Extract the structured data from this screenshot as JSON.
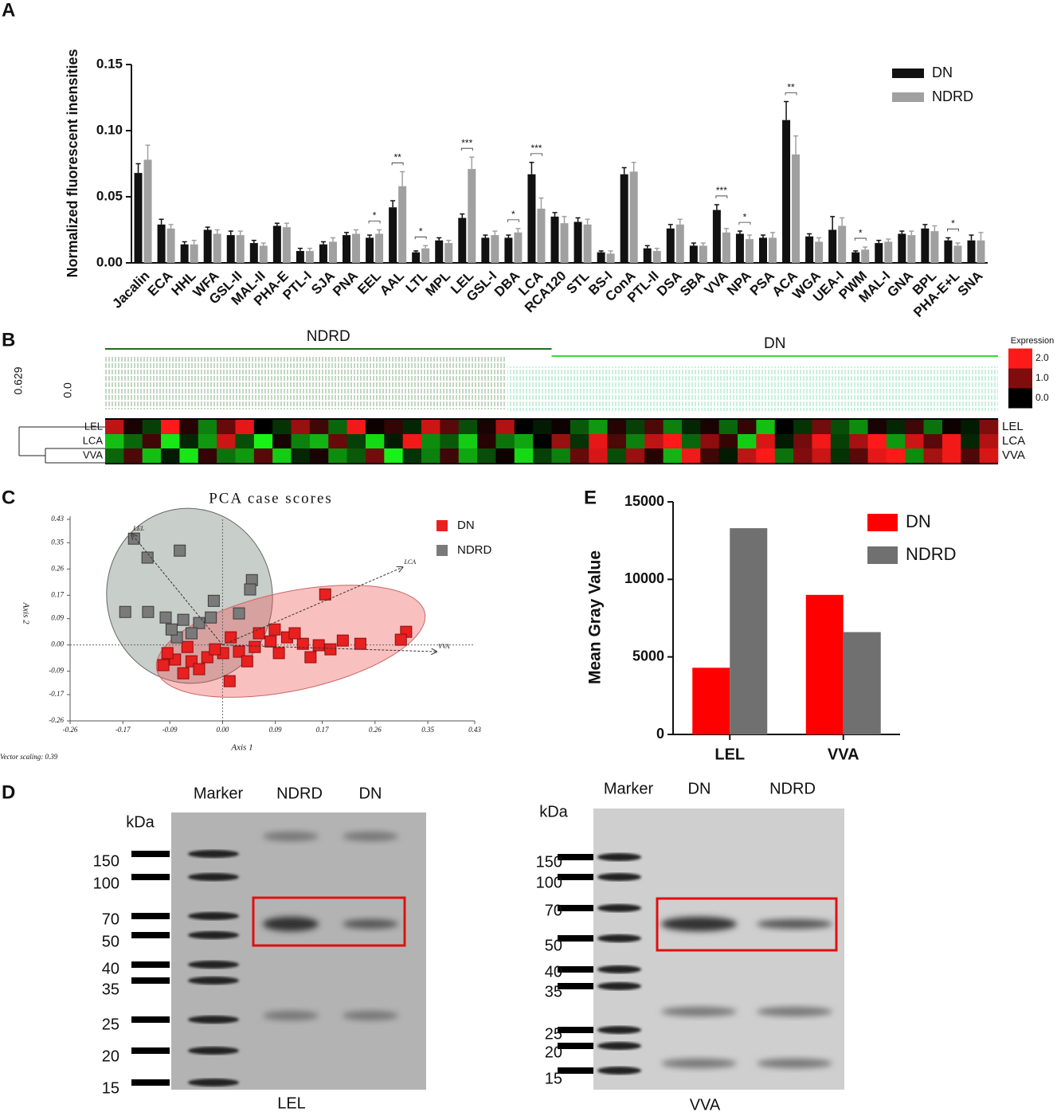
{
  "panel_labels": [
    "A",
    "B",
    "C",
    "D",
    "E"
  ],
  "chart_data": [
    {
      "type": "bar",
      "y_label": "Normalized fluorescent inensities",
      "categories": [
        "Jacalin",
        "ECA",
        "HHL",
        "WFA",
        "GSL-II",
        "MAL-II",
        "PHA-E",
        "PTL-I",
        "SJA",
        "PNA",
        "EEL",
        "AAL",
        "LTL",
        "MPL",
        "LEL",
        "GSL-I",
        "DBA",
        "LCA",
        "RCA120",
        "STL",
        "BS-I",
        "ConA",
        "PTL-II",
        "DSA",
        "SBA",
        "VVA",
        "NPA",
        "PSA",
        "ACA",
        "WGA",
        "UEA-I",
        "PWM",
        "MAL-I",
        "GNA",
        "BPL",
        "PHA-E+L",
        "SNA"
      ],
      "series": [
        {
          "name": "DN",
          "color": "#111111",
          "values": [
            0.068,
            0.029,
            0.014,
            0.025,
            0.021,
            0.015,
            0.028,
            0.009,
            0.014,
            0.021,
            0.019,
            0.042,
            0.008,
            0.017,
            0.034,
            0.019,
            0.019,
            0.067,
            0.035,
            0.031,
            0.008,
            0.067,
            0.011,
            0.026,
            0.013,
            0.04,
            0.022,
            0.019,
            0.108,
            0.02,
            0.025,
            0.008,
            0.015,
            0.022,
            0.026,
            0.017,
            0.017
          ],
          "errors": [
            0.007,
            0.004,
            0.002,
            0.002,
            0.003,
            0.002,
            0.002,
            0.002,
            0.002,
            0.002,
            0.002,
            0.005,
            0.001,
            0.002,
            0.003,
            0.002,
            0.002,
            0.009,
            0.003,
            0.003,
            0.001,
            0.005,
            0.002,
            0.003,
            0.002,
            0.004,
            0.002,
            0.002,
            0.014,
            0.002,
            0.01,
            0.001,
            0.002,
            0.002,
            0.003,
            0.002,
            0.004
          ]
        },
        {
          "name": "NDRD",
          "color": "#a0a0a0",
          "values": [
            0.078,
            0.026,
            0.014,
            0.022,
            0.021,
            0.013,
            0.027,
            0.009,
            0.016,
            0.022,
            0.022,
            0.058,
            0.011,
            0.015,
            0.071,
            0.021,
            0.023,
            0.041,
            0.03,
            0.029,
            0.007,
            0.069,
            0.009,
            0.029,
            0.013,
            0.023,
            0.018,
            0.019,
            0.082,
            0.016,
            0.028,
            0.01,
            0.016,
            0.021,
            0.024,
            0.013,
            0.017
          ],
          "errors": [
            0.011,
            0.003,
            0.003,
            0.003,
            0.003,
            0.002,
            0.003,
            0.002,
            0.003,
            0.003,
            0.003,
            0.011,
            0.002,
            0.002,
            0.009,
            0.003,
            0.003,
            0.008,
            0.005,
            0.004,
            0.002,
            0.007,
            0.002,
            0.004,
            0.002,
            0.003,
            0.003,
            0.004,
            0.014,
            0.003,
            0.006,
            0.002,
            0.002,
            0.003,
            0.004,
            0.002,
            0.006
          ]
        }
      ],
      "ylim": [
        0,
        0.15
      ],
      "yticks": [
        {
          "value": 0,
          "label": "0.00"
        },
        0.05,
        {
          "value": 0.1,
          "label": "0.10"
        },
        0.15
      ],
      "annotations": [
        {
          "text": "*",
          "category": "EEL"
        },
        {
          "text": "**",
          "category": "AAL"
        },
        {
          "text": "*",
          "category": "LTL"
        },
        {
          "text": "***",
          "category": "LEL"
        },
        {
          "text": "*",
          "category": "DBA"
        },
        {
          "text": "***",
          "category": "LCA"
        },
        {
          "text": "***",
          "category": "VVA"
        },
        {
          "text": "*",
          "category": "NPA"
        },
        {
          "text": "**",
          "category": "ACA"
        },
        {
          "text": "*",
          "category": "PWM"
        },
        {
          "text": "*",
          "category": "PHA-E+L"
        }
      ],
      "legend": "top-right"
    },
    {
      "type": "heatmap",
      "rows": [
        "LEL",
        "LCA",
        "VVA"
      ],
      "dendrogram_scale": [
        "0.629",
        "0.0"
      ],
      "legend_title": "Expression",
      "legend_ticks": [
        {
          "value": 2,
          "label": "2.0"
        },
        {
          "value": 1,
          "label": "1.0"
        },
        {
          "value": 0,
          "label": "0.0"
        }
      ],
      "colors": {
        "high": "#ff1a1a",
        "mid": "#000000",
        "low": "#1aff1a"
      },
      "groups": [
        {
          "name": "NDRD",
          "color": "#1e6e1e",
          "values": [
            [
              1.5,
              0.2,
              -0.5,
              2,
              0.3,
              -1,
              0.8,
              1.8,
              0,
              -0.4,
              1.2,
              0.5,
              -0.8,
              1.9,
              0.1,
              0.4,
              -0.3,
              1.6,
              0.7,
              -0.6,
              0.2,
              1.4,
              0,
              -0.2
            ],
            [
              -1.5,
              -0.8,
              0.5,
              -1.8,
              -0.3,
              -1.2,
              1.6,
              -0.6,
              -1.9,
              0.2,
              -1,
              -1.4,
              0.8,
              -0.5,
              -1.7,
              -0.2,
              1.9,
              -1.1,
              -0.7,
              -1.6,
              0.3,
              -0.9,
              -1.3,
              0
            ],
            [
              -0.8,
              0.6,
              -1.5,
              -0.2,
              -1.8,
              0.4,
              -0.9,
              -1.2,
              0.7,
              -1.6,
              -0.3,
              0.2,
              -1.1,
              -0.7,
              0.9,
              -1.9,
              -0.4,
              -1,
              0.5,
              -1.3,
              -0.6,
              0.1,
              -1.7,
              -0.5
            ]
          ]
        },
        {
          "name": "DN",
          "color": "#33dd33",
          "values": [
            [
              0.1,
              -0.7,
              -1.2,
              0.3,
              -0.5,
              0.6,
              -1,
              -0.3,
              0.2,
              -0.8,
              0.4,
              -1.5,
              0,
              -0.4,
              0.9,
              -0.6,
              -1.1,
              0.2,
              -0.3,
              0.5,
              -0.9,
              0.1,
              -0.2,
              1
            ],
            [
              1.2,
              -0.4,
              1.8,
              0.6,
              -1,
              1.5,
              2,
              -0.8,
              1.1,
              0.4,
              -1.6,
              1.7,
              -0.2,
              0.9,
              1.9,
              -0.5,
              1.3,
              2,
              -1.2,
              1.6,
              0.7,
              1.9,
              -0.3,
              1.4
            ],
            [
              -1,
              0.8,
              1.7,
              -0.6,
              1.2,
              0.3,
              -1.4,
              1.9,
              0.5,
              -0.2,
              1.5,
              2,
              -0.9,
              1,
              1.6,
              -0.4,
              0.7,
              1.8,
              2,
              -1.1,
              1.3,
              1.9,
              0.6,
              1.7
            ]
          ]
        }
      ]
    },
    {
      "type": "scatter",
      "title": "PCA case scores",
      "x_label": "Axis 1",
      "y_label": "Axis 2",
      "footnote": "Vector scaling: 0.39",
      "xlim": [
        -0.26,
        0.43
      ],
      "ylim": [
        -0.26,
        0.43
      ],
      "xticks": [
        -0.26,
        -0.17,
        -0.09,
        {
          "value": 0,
          "label": "0.00"
        },
        0.09,
        0.17,
        0.26,
        0.35,
        0.43
      ],
      "yticks": [
        -0.26,
        -0.17,
        -0.09,
        {
          "value": 0,
          "label": "0.00"
        },
        0.09,
        0.17,
        0.26,
        0.35,
        0.43
      ],
      "series": [
        {
          "name": "DN",
          "color": "#e82020",
          "x": [
            0.175,
            0.313,
            0.304,
            0.235,
            0.205,
            0.164,
            0.137,
            0.11,
            0.082,
            0.055,
            0.028,
            0.001,
            -0.026,
            -0.053,
            -0.081,
            -0.094,
            -0.067,
            -0.04,
            0.012,
            -0.013,
            0.096,
            0.123,
            0.15,
            0.184,
            0.089,
            0.062,
            0.042,
            -0.06,
            -0.101,
            0.014
          ],
          "y": [
            0.173,
            0.045,
            0.018,
            0.004,
            0.015,
            -0.001,
            0.004,
            0.026,
            0.012,
            -0.007,
            -0.023,
            -0.028,
            -0.042,
            -0.056,
            -0.05,
            -0.028,
            -0.097,
            -0.083,
            -0.124,
            -0.015,
            -0.028,
            0.04,
            -0.042,
            -0.015,
            0.053,
            0.04,
            -0.056,
            -0.007,
            -0.069,
            0.026
          ]
        },
        {
          "name": "NDRD",
          "color": "#7a7a7a",
          "x": [
            -0.151,
            -0.128,
            -0.073,
            -0.166,
            -0.127,
            0.05,
            0.047,
            -0.015,
            -0.097,
            -0.067,
            -0.04,
            -0.078,
            0.028,
            -0.053,
            -0.02,
            -0.087
          ],
          "y": [
            0.364,
            0.299,
            0.323,
            0.113,
            0.113,
            0.222,
            0.19,
            0.151,
            0.094,
            0.086,
            0.075,
            0.026,
            0.108,
            0.04,
            0.094,
            0.053
          ]
        }
      ],
      "vectors": [
        {
          "name": "LEL",
          "x": -0.155,
          "y": 0.38
        },
        {
          "name": "LCA",
          "x": 0.307,
          "y": 0.266
        },
        {
          "name": "VVA",
          "x": 0.365,
          "y": -0.023
        }
      ],
      "legend": "top-right"
    },
    {
      "type": "bar",
      "y_label": "Mean Gray Value",
      "categories": [
        "LEL",
        "VVA"
      ],
      "series": [
        {
          "name": "DN",
          "color": "#ff0000",
          "values": [
            4300,
            9000
          ]
        },
        {
          "name": "NDRD",
          "color": "#707070",
          "values": [
            13300,
            6600
          ]
        }
      ],
      "ylim": [
        0,
        15000
      ],
      "yticks": [
        0,
        5000,
        10000,
        15000
      ],
      "legend": "top-right"
    }
  ],
  "gels": [
    {
      "lanes": [
        "Marker",
        "NDRD",
        "DN"
      ],
      "unit": "kDa",
      "markers": [
        150,
        100,
        70,
        50,
        40,
        35,
        25,
        20,
        15
      ],
      "caption": "LEL"
    },
    {
      "lanes": [
        "Marker",
        "DN",
        "NDRD"
      ],
      "unit": "kDa",
      "markers": [
        150,
        100,
        70,
        50,
        40,
        35,
        25,
        20,
        15
      ],
      "caption": "VVA"
    }
  ]
}
